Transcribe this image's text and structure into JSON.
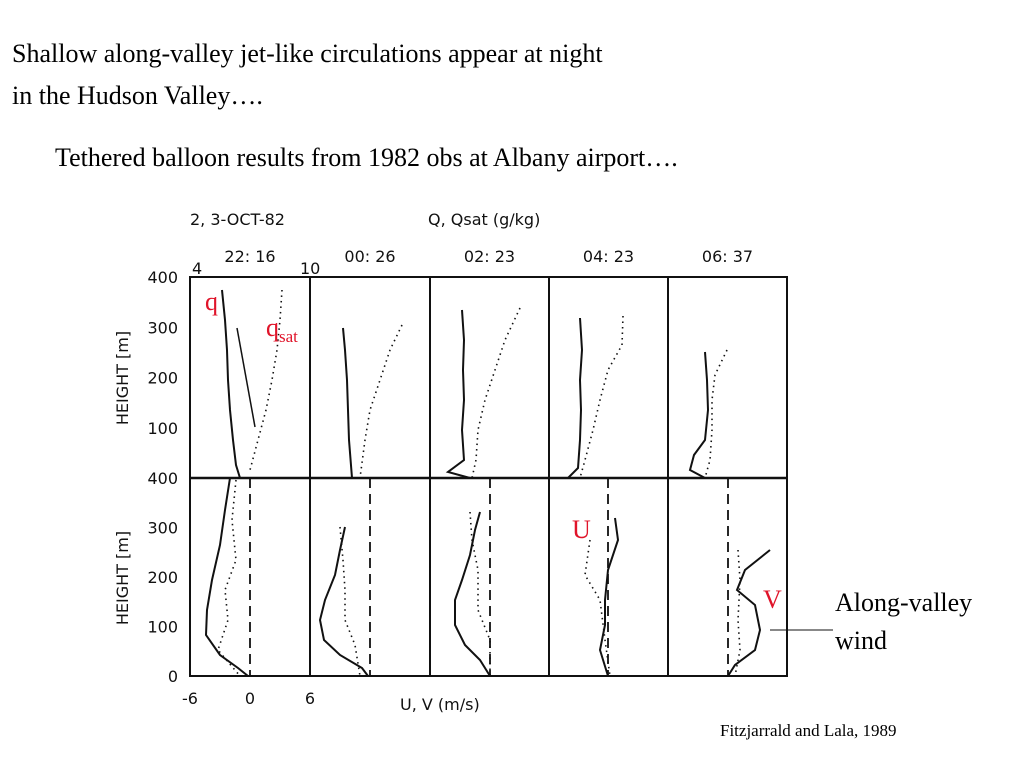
{
  "heading": {
    "line1": "Shallow along-valley jet-like circulations appear at night",
    "line2": "in the Hudson Valley…."
  },
  "subheading": "Tethered balloon results from 1982 obs at Albany airport….",
  "figure": {
    "date_label": "2, 3-OCT-82",
    "top_axis_label": "Q, Qsat  (g/kg)",
    "q_range": [
      4,
      10
    ],
    "times": [
      "22: 16",
      "00: 26",
      "02: 23",
      "04: 23",
      "06: 37"
    ],
    "y_axis_label": "HEIGHT [m]",
    "upper_yticks": [
      400,
      300,
      200,
      100
    ],
    "lower_yticks": [
      400,
      300,
      200,
      100,
      0
    ],
    "xticks": [
      -6,
      0,
      6
    ],
    "x_axis_label": "U, V  (m/s)"
  },
  "annotations": {
    "q": "q",
    "qsat": "q",
    "qsat_sub": "sat",
    "u": "U",
    "v": "V",
    "along_valley": "Along-valley",
    "wind": "wind"
  },
  "citation": "Fitzjarrald and Lala, 1989"
}
